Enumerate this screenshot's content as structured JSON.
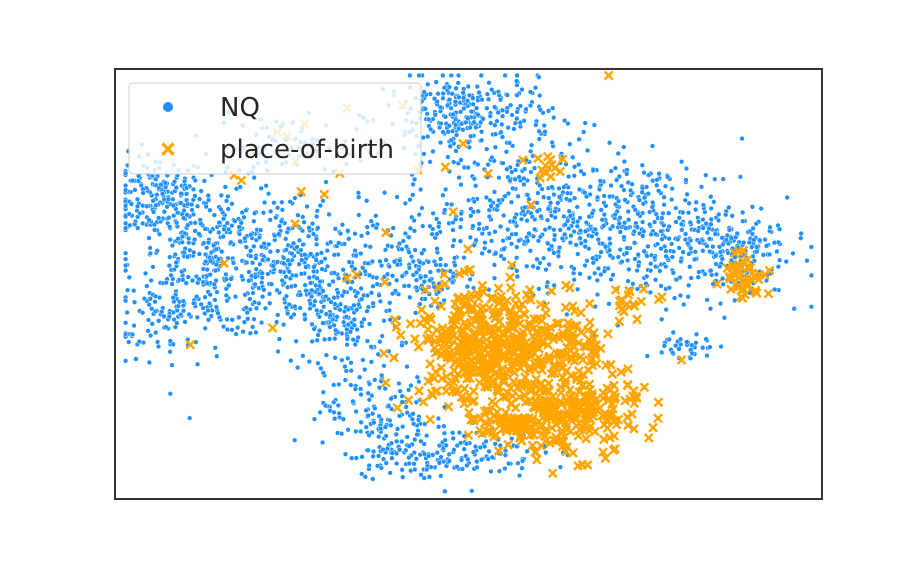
{
  "chart_data": {
    "type": "scatter",
    "title": "",
    "xlabel": "",
    "ylabel": "",
    "axes_visible": false,
    "grid": false,
    "legend_placement": "top-left",
    "series": [
      {
        "name": "NQ",
        "marker": "circle",
        "color": "#1e90ff",
        "clusters": [
          {
            "center": [
              0.06,
              0.7
            ],
            "spread": [
              0.035,
              0.05
            ],
            "count": 180
          },
          {
            "center": [
              0.14,
              0.55
            ],
            "spread": [
              0.06,
              0.09
            ],
            "count": 380
          },
          {
            "center": [
              0.26,
              0.55
            ],
            "spread": [
              0.06,
              0.08
            ],
            "count": 280
          },
          {
            "center": [
              0.32,
              0.42
            ],
            "spread": [
              0.04,
              0.06
            ],
            "count": 160
          },
          {
            "center": [
              0.24,
              0.82
            ],
            "spread": [
              0.05,
              0.035
            ],
            "count": 60
          },
          {
            "center": [
              0.5,
              0.89
            ],
            "spread": [
              0.06,
              0.05
            ],
            "count": 300
          },
          {
            "center": [
              0.58,
              0.66
            ],
            "spread": [
              0.09,
              0.08
            ],
            "count": 420
          },
          {
            "center": [
              0.76,
              0.62
            ],
            "spread": [
              0.08,
              0.08
            ],
            "count": 380
          },
          {
            "center": [
              0.87,
              0.57
            ],
            "spread": [
              0.04,
              0.05
            ],
            "count": 140
          },
          {
            "center": [
              0.37,
              0.21
            ],
            "spread": [
              0.04,
              0.05
            ],
            "count": 120
          },
          {
            "center": [
              0.46,
              0.11
            ],
            "spread": [
              0.07,
              0.03
            ],
            "count": 190
          },
          {
            "center": [
              0.43,
              0.52
            ],
            "spread": [
              0.03,
              0.05
            ],
            "count": 110
          },
          {
            "center": [
              0.81,
              0.35
            ],
            "spread": [
              0.02,
              0.02
            ],
            "count": 40
          },
          {
            "center": [
              0.07,
              0.42
            ],
            "spread": [
              0.03,
              0.04
            ],
            "count": 60
          }
        ]
      },
      {
        "name": "place-of-birth",
        "marker": "x",
        "color": "#ffa500",
        "clusters": [
          {
            "center": [
              0.52,
              0.35
            ],
            "spread": [
              0.05,
              0.07
            ],
            "count": 420
          },
          {
            "center": [
              0.63,
              0.36
            ],
            "spread": [
              0.04,
              0.04
            ],
            "count": 110
          },
          {
            "center": [
              0.64,
              0.2
            ],
            "spread": [
              0.05,
              0.05
            ],
            "count": 240
          },
          {
            "center": [
              0.57,
              0.17
            ],
            "spread": [
              0.04,
              0.02
            ],
            "count": 60
          },
          {
            "center": [
              0.89,
              0.52
            ],
            "spread": [
              0.015,
              0.03
            ],
            "count": 45
          },
          {
            "center": [
              0.61,
              0.77
            ],
            "spread": [
              0.015,
              0.015
            ],
            "count": 14
          },
          {
            "center": [
              0.74,
              0.46
            ],
            "spread": [
              0.02,
              0.02
            ],
            "count": 18
          },
          {
            "center": [
              0.38,
              0.66
            ],
            "spread": [
              0.18,
              0.18
            ],
            "count": 28
          },
          {
            "center": [
              0.25,
              0.82
            ],
            "spread": [
              0.03,
              0.02
            ],
            "count": 4
          }
        ]
      }
    ]
  }
}
